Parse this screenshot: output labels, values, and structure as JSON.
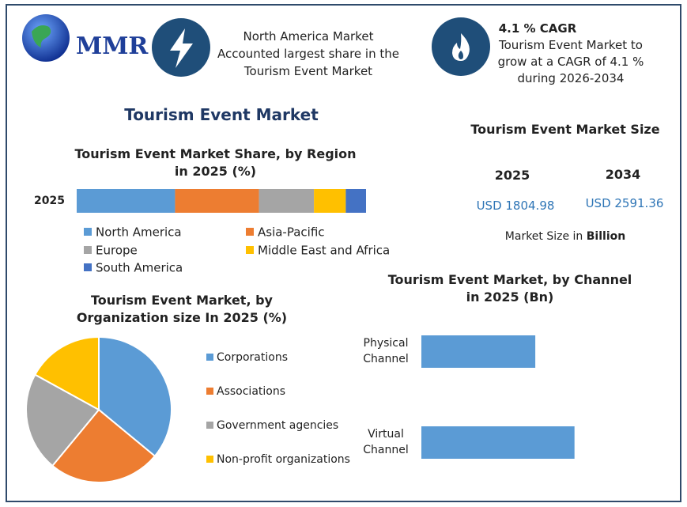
{
  "header": {
    "logo_text": "MMR",
    "highlights": [
      {
        "text": "North America Market Accounted largest share in the Tourism Event Market"
      },
      {
        "title": "4.1 % CAGR",
        "text": "Tourism Event Market to grow at a CAGR of 4.1 % during 2026-2034"
      }
    ]
  },
  "title": "Tourism Event Market",
  "market_size": {
    "title": "Tourism Event Market Size",
    "years": [
      "2025",
      "2034"
    ],
    "values": [
      "USD 1804.98",
      "USD 2591.36"
    ],
    "note": "Market Size in",
    "note_emphasis": "Billion"
  },
  "chart_data": [
    {
      "type": "stacked_bar",
      "orientation": "horizontal",
      "title": "Tourism Event Market Share, by Region in 2025 (%)",
      "categories": [
        "2025"
      ],
      "xlim": [
        0,
        100
      ],
      "series": [
        {
          "name": "North America",
          "color": "#5b9bd5",
          "values": [
            34
          ]
        },
        {
          "name": "Asia-Pacific",
          "color": "#ed7d31",
          "values": [
            29
          ]
        },
        {
          "name": "Europe",
          "color": "#a5a5a5",
          "values": [
            19
          ]
        },
        {
          "name": "Middle East and Africa",
          "color": "#ffc000",
          "values": [
            11
          ]
        },
        {
          "name": "South America",
          "color": "#4472c4",
          "values": [
            7
          ]
        }
      ]
    },
    {
      "type": "pie",
      "title": "Tourism Event Market, by Organization size In 2025 (%)",
      "categories": [
        "Corporations",
        "Associations",
        "Government agencies",
        "Non-profit organizations"
      ],
      "values": [
        36,
        25,
        22,
        17
      ],
      "colors": [
        "#5b9bd5",
        "#ed7d31",
        "#a5a5a5",
        "#ffc000"
      ]
    },
    {
      "type": "bar",
      "orientation": "horizontal",
      "title": "Tourism Event Market, by Channel in 2025 (Bn)",
      "categories": [
        "Physical Channel",
        "Virtual Channel"
      ],
      "values": [
        770,
        1035
      ],
      "color": "#5b9bd5",
      "xlim": [
        0,
        1400
      ]
    }
  ]
}
